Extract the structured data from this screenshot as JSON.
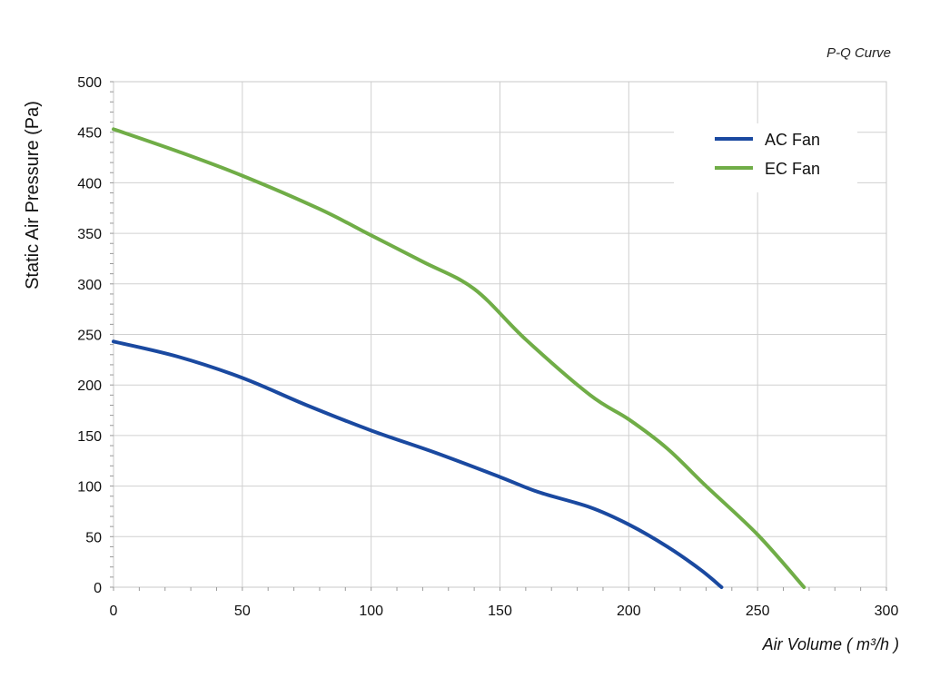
{
  "chart_data": {
    "type": "line",
    "title": "P-Q Curve",
    "xlabel": "Air Volume ( m³/h )",
    "ylabel": "Static Air Pressure  (Pa)",
    "xlim": [
      0,
      300
    ],
    "ylim": [
      0,
      500
    ],
    "xticks": [
      0,
      50,
      100,
      150,
      200,
      250,
      300
    ],
    "yticks": [
      0,
      50,
      100,
      150,
      200,
      250,
      300,
      350,
      400,
      450,
      500
    ],
    "grid": true,
    "legend_position": "top-right",
    "series": [
      {
        "name": "AC Fan",
        "color": "#1a49a0",
        "x": [
          0,
          25,
          50,
          75,
          100,
          125,
          150,
          165,
          185,
          200,
          215,
          228,
          236
        ],
        "y": [
          243,
          228,
          207,
          180,
          155,
          133,
          109,
          94,
          79,
          62,
          40,
          17,
          0
        ]
      },
      {
        "name": "EC Fan",
        "color": "#70ad47",
        "x": [
          0,
          25,
          50,
          80,
          100,
          120,
          140,
          160,
          185,
          200,
          215,
          230,
          250,
          268
        ],
        "y": [
          453,
          431,
          407,
          374,
          348,
          322,
          295,
          245,
          190,
          166,
          137,
          100,
          52,
          0
        ]
      }
    ]
  }
}
